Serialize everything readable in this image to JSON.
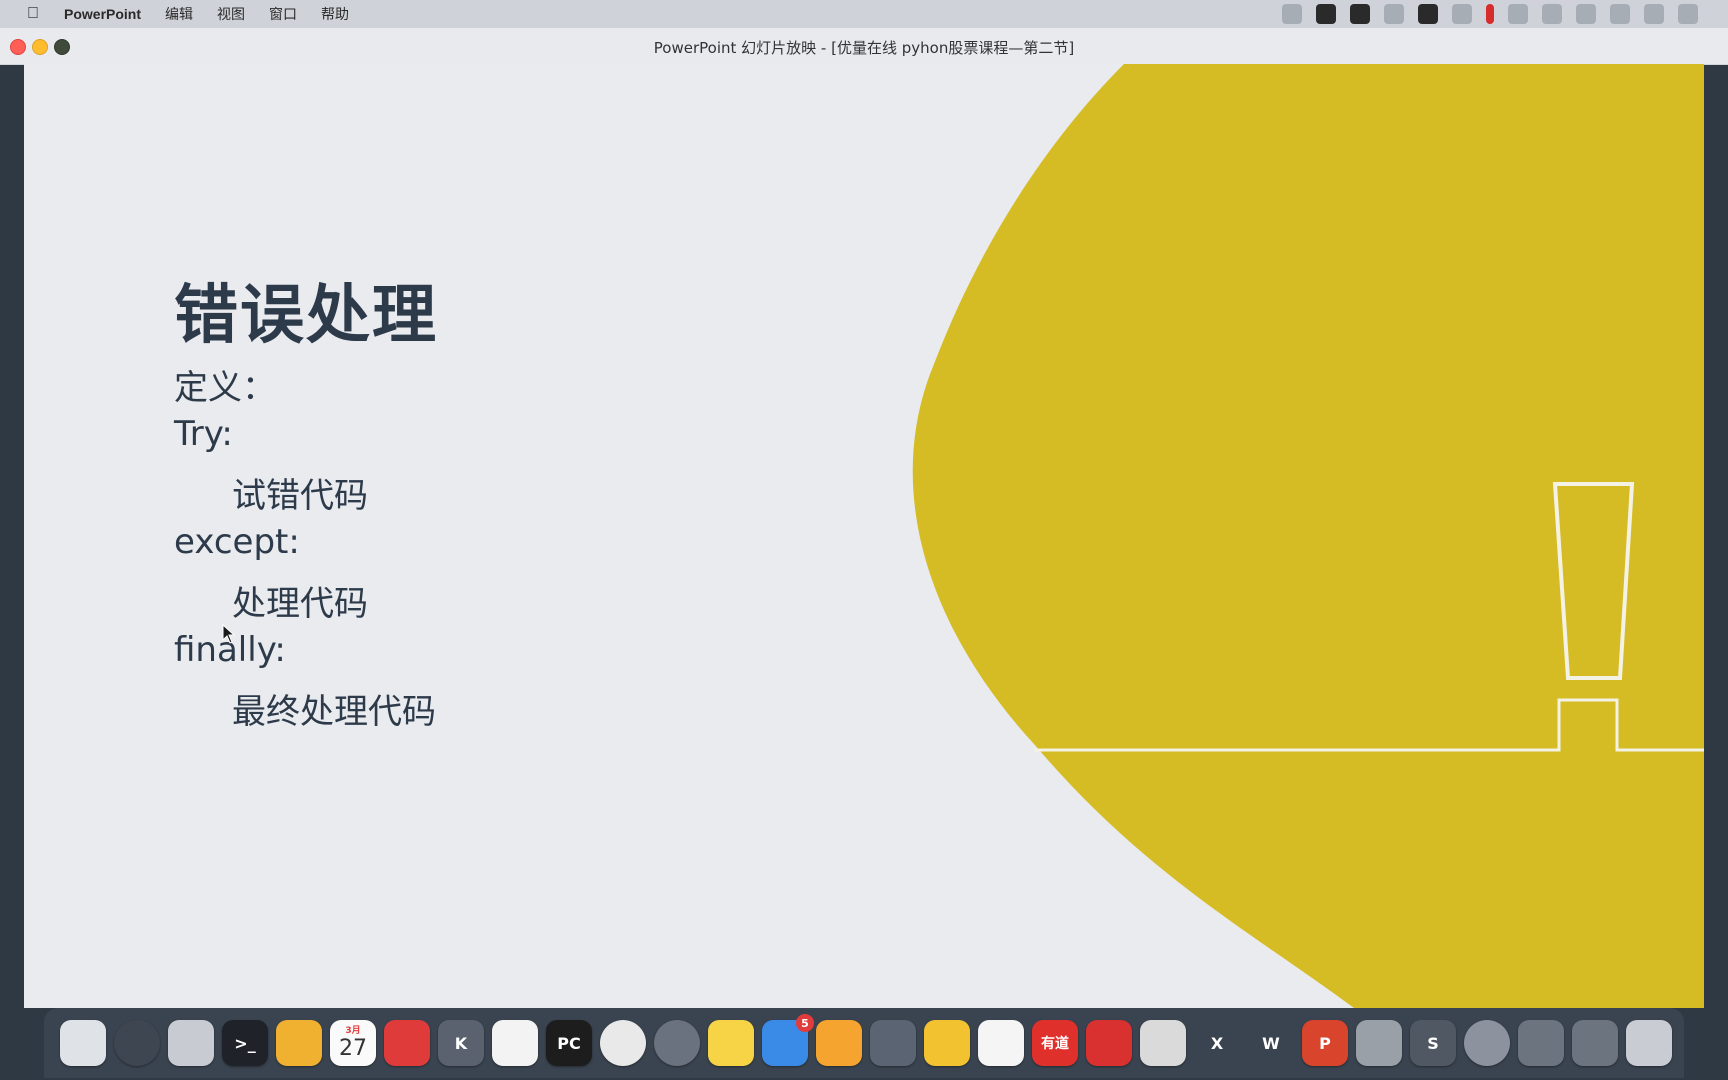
{
  "menubar": {
    "app_name": "PowerPoint",
    "items": [
      "编辑",
      "视图",
      "窗口",
      "帮助"
    ]
  },
  "window": {
    "title": "PowerPoint 幻灯片放映 - [优量在线 pyhon股票课程—第二节]"
  },
  "slide": {
    "title": "错误处理",
    "lines": [
      "定义：",
      "Try:",
      "试错代码",
      "except:",
      "处理代码",
      "finally:",
      "最终处理代码"
    ],
    "accent_color": "#d5bc24",
    "background_color": "#eaebef",
    "text_color": "#2d3a4a"
  },
  "dock": {
    "calendar_month": "3月",
    "calendar_day": "27",
    "appstore_badge": "5",
    "pycharm_label": "PC",
    "youdao_label": "有道",
    "x_label": "X",
    "w_label": "W",
    "p_label": "P"
  }
}
